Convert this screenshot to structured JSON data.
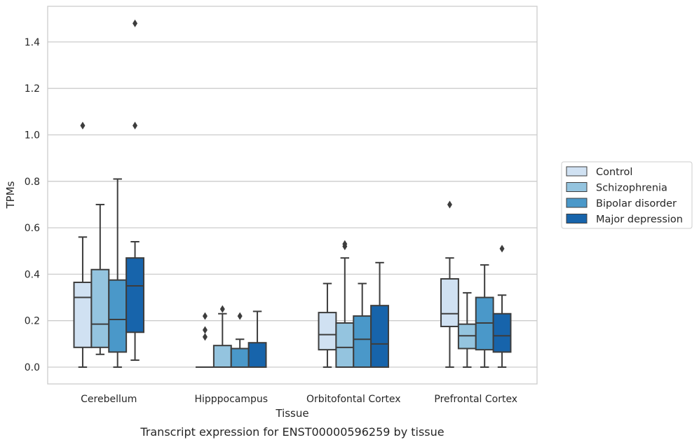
{
  "chart_data": {
    "type": "box",
    "title": "",
    "caption": "Transcript expression for ENST00000596259 by tissue",
    "xlabel": "Tissue",
    "ylabel": "TPMs",
    "ylim": [
      -0.07,
      1.56
    ],
    "yticks": [
      0.0,
      0.2,
      0.4,
      0.6,
      0.8,
      1.0,
      1.2,
      1.4
    ],
    "grid": "horizontal",
    "legend_position": "right",
    "categories": [
      "Cerebellum",
      "Hipppocampus",
      "Orbitofontal Cortex",
      "Prefrontal Cortex"
    ],
    "series": [
      {
        "name": "Control",
        "color": "#d0e1f2",
        "boxes": [
          {
            "whisker_low": 0.0,
            "q1": 0.085,
            "median": 0.3,
            "q3": 0.365,
            "whisker_high": 0.56,
            "outliers": [
              1.04
            ]
          },
          {
            "whisker_low": 0.0,
            "q1": 0.0,
            "median": 0.0,
            "q3": 0.0,
            "whisker_high": 0.0,
            "outliers": [
              0.13,
              0.16,
              0.22
            ]
          },
          {
            "whisker_low": 0.0,
            "q1": 0.075,
            "median": 0.14,
            "q3": 0.235,
            "whisker_high": 0.36,
            "outliers": []
          },
          {
            "whisker_low": 0.0,
            "q1": 0.175,
            "median": 0.23,
            "q3": 0.38,
            "whisker_high": 0.47,
            "outliers": [
              0.7
            ]
          }
        ]
      },
      {
        "name": "Schizophrenia",
        "color": "#94c4df",
        "boxes": [
          {
            "whisker_low": 0.055,
            "q1": 0.085,
            "median": 0.185,
            "q3": 0.42,
            "whisker_high": 0.7,
            "outliers": []
          },
          {
            "whisker_low": 0.0,
            "q1": 0.0,
            "median": 0.0,
            "q3": 0.093,
            "whisker_high": 0.23,
            "outliers": [
              0.25
            ]
          },
          {
            "whisker_low": 0.0,
            "q1": 0.0,
            "median": 0.085,
            "q3": 0.19,
            "whisker_high": 0.47,
            "outliers": [
              0.52,
              0.53
            ]
          },
          {
            "whisker_low": 0.0,
            "q1": 0.08,
            "median": 0.135,
            "q3": 0.185,
            "whisker_high": 0.32,
            "outliers": []
          }
        ]
      },
      {
        "name": "Bipolar disorder",
        "color": "#4a98c9",
        "boxes": [
          {
            "whisker_low": 0.0,
            "q1": 0.065,
            "median": 0.205,
            "q3": 0.375,
            "whisker_high": 0.81,
            "outliers": []
          },
          {
            "whisker_low": 0.0,
            "q1": 0.0,
            "median": 0.0,
            "q3": 0.08,
            "whisker_high": 0.12,
            "outliers": [
              0.22
            ]
          },
          {
            "whisker_low": 0.0,
            "q1": 0.0,
            "median": 0.12,
            "q3": 0.22,
            "whisker_high": 0.36,
            "outliers": []
          },
          {
            "whisker_low": 0.0,
            "q1": 0.075,
            "median": 0.19,
            "q3": 0.3,
            "whisker_high": 0.44,
            "outliers": []
          }
        ]
      },
      {
        "name": "Major depression",
        "color": "#1764ab",
        "boxes": [
          {
            "whisker_low": 0.03,
            "q1": 0.15,
            "median": 0.35,
            "q3": 0.47,
            "whisker_high": 0.54,
            "outliers": [
              1.04,
              1.48
            ]
          },
          {
            "whisker_low": 0.0,
            "q1": 0.0,
            "median": 0.0,
            "q3": 0.105,
            "whisker_high": 0.24,
            "outliers": []
          },
          {
            "whisker_low": 0.0,
            "q1": 0.0,
            "median": 0.1,
            "q3": 0.265,
            "whisker_high": 0.45,
            "outliers": []
          },
          {
            "whisker_low": 0.0,
            "q1": 0.065,
            "median": 0.135,
            "q3": 0.23,
            "whisker_high": 0.31,
            "outliers": [
              0.51
            ]
          }
        ]
      }
    ]
  }
}
